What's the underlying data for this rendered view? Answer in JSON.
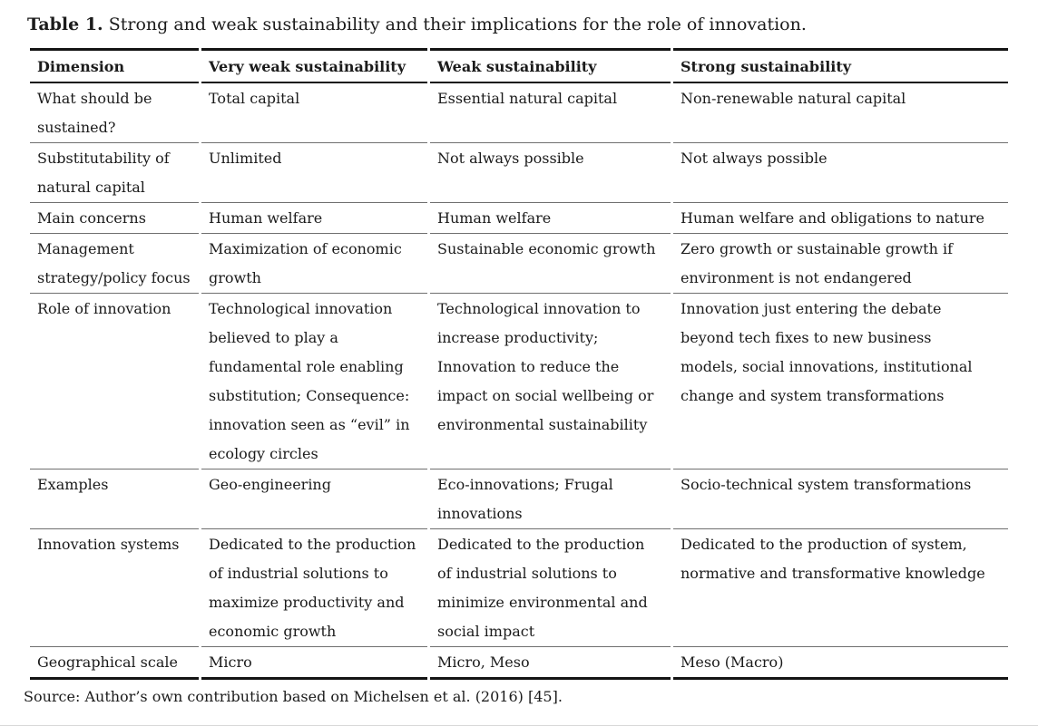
{
  "caption": {
    "label": "Table 1.",
    "text": " Strong and weak sustainability and their implications for the role of innovation."
  },
  "table": {
    "headers": [
      "Dimension",
      "Very weak sustainability",
      "Weak sustainability",
      "Strong sustainability"
    ],
    "rows": [
      [
        "What should be\nsustained?",
        "Total capital",
        "Essential natural capital",
        "Non-renewable natural capital"
      ],
      [
        "Substitutability of\nnatural capital",
        "Unlimited",
        "Not always possible",
        "Not always possible"
      ],
      [
        "Main concerns",
        "Human welfare",
        "Human welfare",
        "Human welfare and obligations to nature"
      ],
      [
        "Management\nstrategy/policy focus",
        "Maximization of economic\ngrowth",
        "Sustainable economic growth",
        "Zero growth or sustainable growth if\nenvironment is not endangered"
      ],
      [
        "Role of innovation",
        "Technological innovation\nbelieved to play a\nfundamental role enabling\nsubstitution; Consequence:\ninnovation seen as “evil” in\necology circles",
        "Technological innovation to\nincrease productivity;\nInnovation to reduce the\nimpact on social wellbeing or\nenvironmental sustainability",
        "Innovation just entering the debate\nbeyond tech fixes to new business\nmodels, social innovations, institutional\nchange and system transformations"
      ],
      [
        "Examples",
        "Geo-engineering",
        "Eco-innovations; Frugal\ninnovations",
        "Socio-technical system transformations"
      ],
      [
        "Innovation systems",
        "Dedicated to the production\nof industrial solutions to\nmaximize productivity and\neconomic growth",
        "Dedicated to the production\nof industrial solutions to\nminimize environmental and\nsocial impact",
        "Dedicated to the production of system,\nnormative and transformative knowledge"
      ],
      [
        "Geographical scale",
        "Micro",
        "Micro, Meso",
        "Meso (Macro)"
      ]
    ]
  },
  "source_note": "Source: Author’s own contribution based on Michelsen et al. (2016) [45]."
}
